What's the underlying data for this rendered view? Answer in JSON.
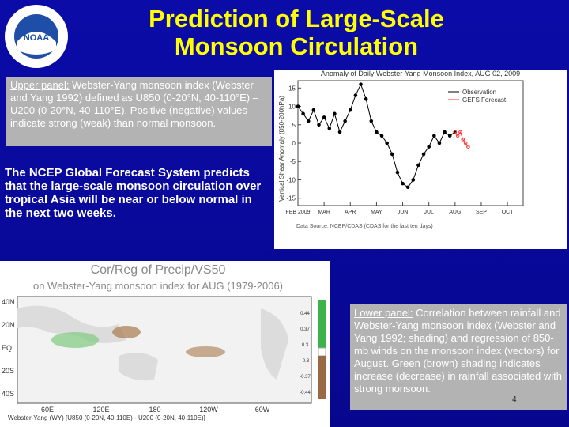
{
  "header": {
    "title": "Prediction of Large-Scale Monsoon Circulation",
    "logo_text": "NOAA"
  },
  "upper_panel": {
    "label": "Upper panel:",
    "text": " Webster-Yang monsoon index (Webster and Yang 1992) defined as U850 (0-20°N, 40-110°E) – U200 (0-20°N, 40-110°E). Positive (negative) values indicate strong (weak) than normal monsoon."
  },
  "summary": "The NCEP Global Forecast System predicts that the large-scale monsoon circulation over tropical Asia will be near or below normal in the next two weeks.",
  "chart_data": {
    "type": "line",
    "title": "Anomaly of Daily Webster-Yang Monsoon Index, AUG 02, 2009",
    "y_label": "Vertical Shear Anomaly (850-200hPa)",
    "source": "Data Source: NCEP/CDAS (CDAS for the last ten days)",
    "xlim": [
      0,
      8.6
    ],
    "xticks": [
      {
        "value": 0,
        "label": "FEB 2009"
      },
      {
        "value": 1,
        "label": "MAR"
      },
      {
        "value": 2,
        "label": "APR"
      },
      {
        "value": 3,
        "label": "MAY"
      },
      {
        "value": 4,
        "label": "JUN"
      },
      {
        "value": 5,
        "label": "JUL"
      },
      {
        "value": 6,
        "label": "AUG"
      },
      {
        "value": 7,
        "label": "SEP"
      },
      {
        "value": 8,
        "label": "OCT"
      }
    ],
    "ylim": [
      -17,
      17
    ],
    "yticks": [
      -15,
      -10,
      -5,
      0,
      5,
      10,
      15
    ],
    "legend": "upper right",
    "series": [
      {
        "name": "Observation",
        "color": "#000000",
        "x": [
          0,
          0.2,
          0.4,
          0.6,
          0.8,
          1,
          1.2,
          1.4,
          1.6,
          1.8,
          2,
          2.2,
          2.4,
          2.6,
          2.8,
          3,
          3.2,
          3.4,
          3.6,
          3.8,
          4,
          4.2,
          4.4,
          4.6,
          4.8,
          5,
          5.2,
          5.4,
          5.6,
          5.8,
          6
        ],
        "values": [
          10,
          8,
          6,
          9,
          5,
          7,
          4,
          8,
          3,
          6,
          9,
          13,
          16,
          12,
          6,
          3,
          2,
          0,
          -3,
          -8,
          -11,
          -12,
          -10,
          -6,
          -3,
          -1,
          2,
          0,
          3,
          2,
          3
        ]
      },
      {
        "name": "GEFS Forecast",
        "color": "#ff3333",
        "x": [
          6,
          6.1,
          6.2,
          6.3,
          6.4,
          6.5
        ],
        "values": [
          3,
          2,
          3,
          1,
          0,
          -1
        ]
      }
    ]
  },
  "map": {
    "title": "Cor/Reg of Precip/VS50",
    "subtitle": "on Webster-Yang monsoon index for AUG (1979-2006)",
    "lat_labels": [
      "40N",
      "20N",
      "EQ",
      "20S",
      "40S"
    ],
    "lon_labels": [
      "60E",
      "120E",
      "180",
      "120W",
      "60W"
    ],
    "colorbar_labels": [
      "0.44",
      "0.37",
      "0.3",
      "-0.3",
      "-0.37",
      "-0.44"
    ],
    "footer": "Webster-Yang (WY) [U850 (0-20N, 40-110E) - U200 (0-20N, 40-110E)]"
  },
  "lower_panel": {
    "label": "Lower panel:",
    "text": " Correlation between rainfall and Webster-Yang monsoon index (Webster and Yang 1992; shading) and regression of 850-mb winds on the monsoon index (vectors) for August. Green (brown) shading indicates increase (decrease) in rainfall associated with strong monsoon."
  },
  "page_number": "4"
}
